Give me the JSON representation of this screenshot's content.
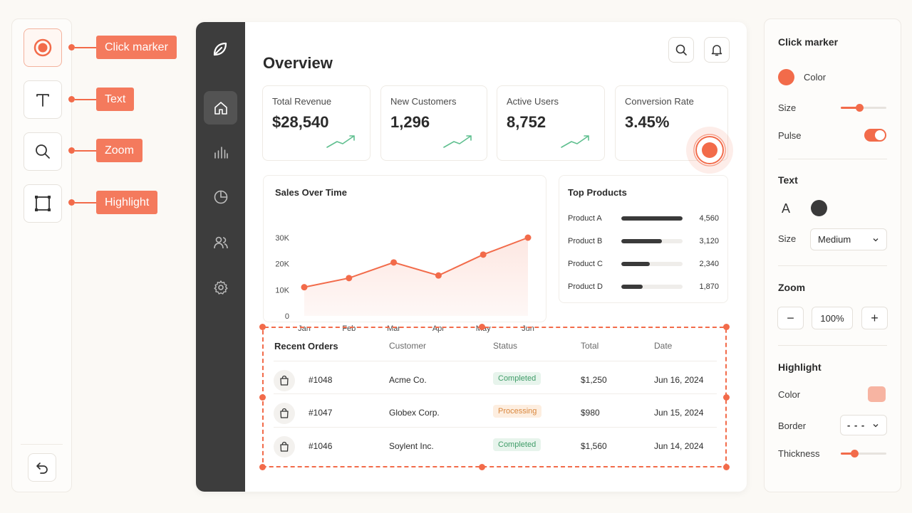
{
  "tools": {
    "items": [
      {
        "label": "Click marker",
        "icon": "click-marker-icon"
      },
      {
        "label": "Text",
        "icon": "text-icon"
      },
      {
        "label": "Zoom",
        "icon": "magnifier-icon"
      },
      {
        "label": "Highlight",
        "icon": "rectangle-icon"
      }
    ],
    "undo_icon": "undo-icon"
  },
  "app": {
    "logo_icon": "leaf-icon",
    "nav": [
      "home-icon",
      "bar-chart-icon",
      "pie-chart-icon",
      "users-icon",
      "settings-icon"
    ],
    "title": "Overview",
    "search_icon": "search-icon",
    "bell_icon": "bell-icon"
  },
  "stats": [
    {
      "label": "Total Revenue",
      "value": "$28,540"
    },
    {
      "label": "New Customers",
      "value": "1,296"
    },
    {
      "label": "Active Users",
      "value": "8,752"
    },
    {
      "label": "Conversion Rate",
      "value": "3.45%"
    }
  ],
  "chart_data": {
    "type": "area",
    "title": "Sales Over Time",
    "categories": [
      "Jan",
      "Feb",
      "Mar",
      "Apr",
      "May",
      "Jun"
    ],
    "values": [
      11000,
      14500,
      20500,
      15500,
      23500,
      30000
    ],
    "y_ticks": [
      "30K",
      "20K",
      "10K",
      "0"
    ],
    "ylim": [
      0,
      30000
    ],
    "grid": false
  },
  "top_products": {
    "title": "Top Products",
    "items": [
      {
        "name": "Product A",
        "value": "4,560",
        "fraction": 1.0
      },
      {
        "name": "Product B",
        "value": "3,120",
        "fraction": 0.66
      },
      {
        "name": "Product C",
        "value": "2,340",
        "fraction": 0.47
      },
      {
        "name": "Product D",
        "value": "1,870",
        "fraction": 0.35
      }
    ]
  },
  "orders": {
    "title": "Recent Orders",
    "columns": [
      "Customer",
      "Status",
      "Total",
      "Date"
    ],
    "rows": [
      {
        "id": "#1048",
        "customer": "Acme Co.",
        "status": "Completed",
        "total": "$1,250",
        "date": "Jun 16, 2024"
      },
      {
        "id": "#1047",
        "customer": "Globex Corp.",
        "status": "Processing",
        "total": "$980",
        "date": "Jun 15, 2024"
      },
      {
        "id": "#1046",
        "customer": "Soylent Inc.",
        "status": "Completed",
        "total": "$1,560",
        "date": "Jun 14, 2024"
      }
    ]
  },
  "settings": {
    "click_marker": {
      "title": "Click marker",
      "color_label": "Color",
      "color": "#f26b4a",
      "size_label": "Size",
      "size": 0.4,
      "pulse_label": "Pulse",
      "pulse": true
    },
    "text": {
      "title": "Text",
      "font_glyph": "A",
      "color": "#3a3a3a",
      "size_label": "Size",
      "size_value": "Medium"
    },
    "zoom": {
      "title": "Zoom",
      "minus": "−",
      "value": "100%",
      "plus": "+"
    },
    "highlight": {
      "title": "Highlight",
      "color_label": "Color",
      "color": "#f7b4a2",
      "border_label": "Border",
      "border_value": "- - -",
      "thickness_label": "Thickness",
      "thickness": 0.3
    }
  },
  "colors": {
    "accent": "#f26b4a",
    "sidebar": "#3d3d3d",
    "trend": "#5fbf8f"
  }
}
